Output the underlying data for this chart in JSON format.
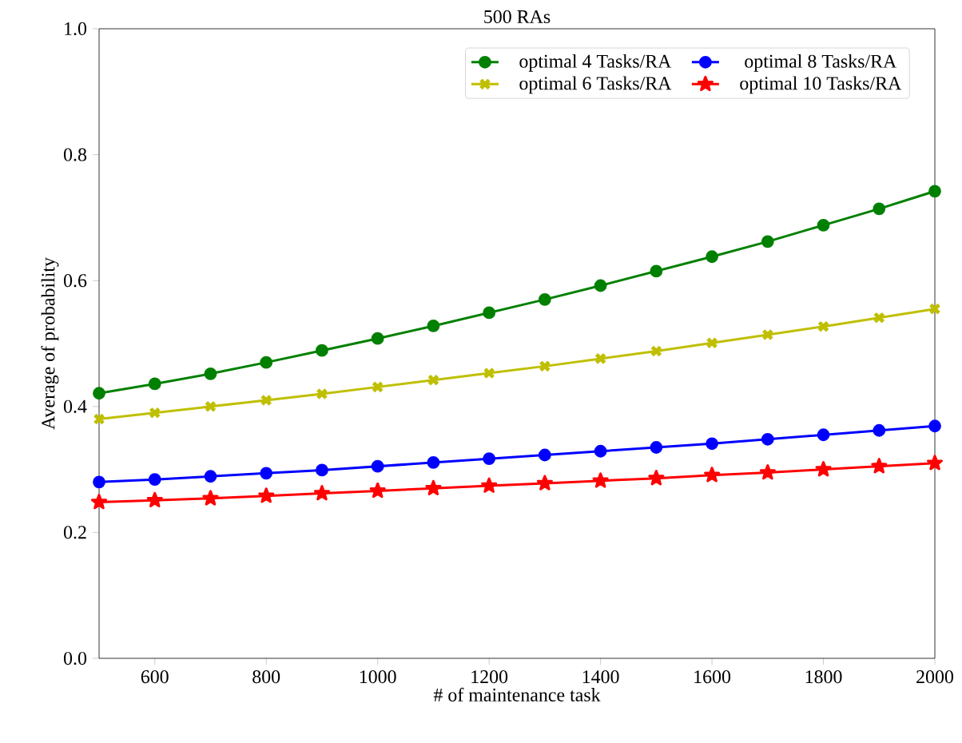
{
  "chart_data": {
    "type": "line",
    "title": "500 RAs",
    "xlabel": "# of maintenance task",
    "ylabel": "Average of probability",
    "x": [
      500,
      600,
      700,
      800,
      900,
      1000,
      1100,
      1200,
      1300,
      1400,
      1500,
      1600,
      1700,
      1800,
      1900,
      2000
    ],
    "series": [
      {
        "name": "optimal 4 Tasks/RA",
        "color": "#008000",
        "marker": "circle",
        "values": [
          0.421,
          0.436,
          0.452,
          0.47,
          0.489,
          0.508,
          0.528,
          0.549,
          0.57,
          0.592,
          0.615,
          0.638,
          0.662,
          0.688,
          0.714,
          0.742
        ]
      },
      {
        "name": "optimal 6 Tasks/RA",
        "color": "#bfbf00",
        "marker": "cross",
        "values": [
          0.38,
          0.39,
          0.4,
          0.41,
          0.42,
          0.431,
          0.442,
          0.453,
          0.464,
          0.476,
          0.488,
          0.501,
          0.514,
          0.527,
          0.541,
          0.555
        ]
      },
      {
        "name": "optimal 8 Tasks/RA",
        "color": "#0000ff",
        "marker": "circle",
        "values": [
          0.28,
          0.284,
          0.289,
          0.294,
          0.299,
          0.305,
          0.311,
          0.317,
          0.323,
          0.329,
          0.335,
          0.341,
          0.348,
          0.355,
          0.362,
          0.369
        ]
      },
      {
        "name": "optimal 10 Tasks/RA",
        "color": "#ff0000",
        "marker": "star",
        "values": [
          0.248,
          0.251,
          0.254,
          0.258,
          0.262,
          0.266,
          0.27,
          0.274,
          0.278,
          0.282,
          0.286,
          0.291,
          0.295,
          0.3,
          0.305,
          0.31
        ]
      }
    ],
    "xlim": [
      500,
      2000
    ],
    "ylim": [
      0,
      1
    ],
    "xticks": [
      600,
      800,
      1000,
      1200,
      1400,
      1600,
      1800,
      2000
    ],
    "yticks": [
      {
        "value": 0,
        "label": "0.0"
      },
      {
        "value": 0.2,
        "label": "0.2"
      },
      {
        "value": 0.4,
        "label": "0.4"
      },
      {
        "value": 0.6,
        "label": "0.6"
      },
      {
        "value": 0.8,
        "label": "0.8"
      },
      {
        "value": 1,
        "label": "1.0"
      }
    ],
    "grid": false,
    "legend": "top right",
    "line_style": "solid"
  }
}
